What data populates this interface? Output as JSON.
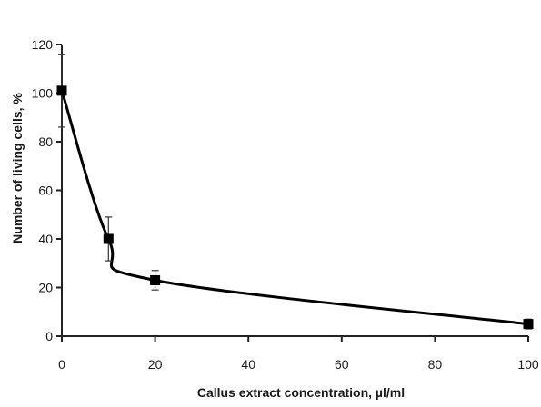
{
  "chart_data": {
    "type": "line",
    "title": "",
    "xlabel": "Callus extract concentration,  µl/ml",
    "ylabel": "Number of living cells, %",
    "xlim": [
      0,
      100
    ],
    "ylim": [
      0,
      120
    ],
    "x_ticks": [
      0,
      20,
      40,
      60,
      80,
      100
    ],
    "y_ticks": [
      0,
      20,
      40,
      60,
      80,
      100,
      120
    ],
    "grid": false,
    "legend": "none",
    "series": [
      {
        "x": [
          0,
          10,
          20,
          100
        ],
        "y": [
          101,
          40,
          23,
          5
        ],
        "error": [
          15,
          9,
          4,
          2
        ],
        "marker": "square",
        "color": "#000000"
      }
    ]
  }
}
